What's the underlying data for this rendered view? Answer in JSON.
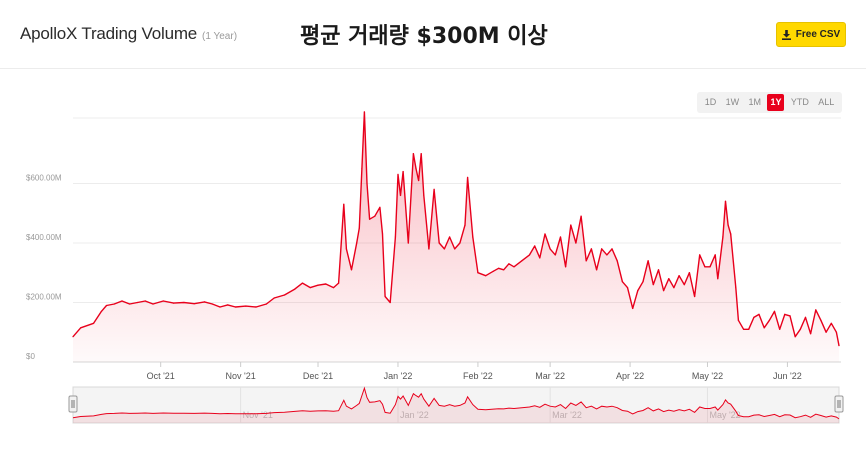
{
  "header": {
    "title": "ApolloX Trading Volume",
    "subtitle": "(1 Year)",
    "overlay_text": "평균 거래량 $300M 이상",
    "csv_button_label": "Free CSV",
    "csv_icon": "download-icon"
  },
  "range_selector": {
    "options": [
      "1D",
      "1W",
      "1M",
      "1Y",
      "YTD",
      "ALL"
    ],
    "selected": "1Y"
  },
  "colors": {
    "line": "#e8001c",
    "accent_button": "#ffd800",
    "active_range": "#e8001c"
  },
  "chart_data": {
    "type": "area",
    "title": "",
    "xlabel": "",
    "ylabel": "",
    "ylim": [
      0,
      820
    ],
    "y_unit": "M",
    "y_ticks": [
      {
        "value": 0,
        "label": "$0"
      },
      {
        "value": 200,
        "label": "$200.00M"
      },
      {
        "value": 400,
        "label": "$400.00M"
      },
      {
        "value": 600,
        "label": "$600.00M"
      }
    ],
    "x_ticks": [
      {
        "date": "2021-10-01",
        "label": "Oct '21"
      },
      {
        "date": "2021-11-01",
        "label": "Nov '21"
      },
      {
        "date": "2021-12-01",
        "label": "Dec '21"
      },
      {
        "date": "2022-01-01",
        "label": "Jan '22"
      },
      {
        "date": "2022-02-01",
        "label": "Feb '22"
      },
      {
        "date": "2022-03-01",
        "label": "Mar '22"
      },
      {
        "date": "2022-04-01",
        "label": "Apr '22"
      },
      {
        "date": "2022-05-01",
        "label": "May '22"
      },
      {
        "date": "2022-06-01",
        "label": "Jun '22"
      }
    ],
    "navigator_ticks": [
      {
        "date": "2021-11-01",
        "label": "Nov '21"
      },
      {
        "date": "2022-01-01",
        "label": "Jan '22"
      },
      {
        "date": "2022-03-01",
        "label": "Mar '22"
      },
      {
        "date": "2022-05-01",
        "label": "May '22"
      }
    ],
    "grid": true,
    "legend": "none",
    "series": [
      {
        "points": [
          [
            "2021-08-28",
            85
          ],
          [
            "2021-08-31",
            115
          ],
          [
            "2021-09-05",
            130
          ],
          [
            "2021-09-08",
            170
          ],
          [
            "2021-09-10",
            190
          ],
          [
            "2021-09-13",
            195
          ],
          [
            "2021-09-16",
            205
          ],
          [
            "2021-09-19",
            195
          ],
          [
            "2021-09-22",
            200
          ],
          [
            "2021-09-25",
            205
          ],
          [
            "2021-09-28",
            195
          ],
          [
            "2021-10-02",
            205
          ],
          [
            "2021-10-06",
            198
          ],
          [
            "2021-10-10",
            200
          ],
          [
            "2021-10-14",
            196
          ],
          [
            "2021-10-18",
            202
          ],
          [
            "2021-10-21",
            195
          ],
          [
            "2021-10-24",
            185
          ],
          [
            "2021-10-27",
            192
          ],
          [
            "2021-10-30",
            185
          ],
          [
            "2021-11-03",
            188
          ],
          [
            "2021-11-07",
            185
          ],
          [
            "2021-11-11",
            195
          ],
          [
            "2021-11-14",
            215
          ],
          [
            "2021-11-18",
            225
          ],
          [
            "2021-11-22",
            245
          ],
          [
            "2021-11-25",
            265
          ],
          [
            "2021-11-28",
            250
          ],
          [
            "2021-12-01",
            258
          ],
          [
            "2021-12-04",
            262
          ],
          [
            "2021-12-07",
            250
          ],
          [
            "2021-12-09",
            265
          ],
          [
            "2021-12-11",
            530
          ],
          [
            "2021-12-12",
            380
          ],
          [
            "2021-12-14",
            310
          ],
          [
            "2021-12-16",
            400
          ],
          [
            "2021-12-17",
            450
          ],
          [
            "2021-12-18",
            650
          ],
          [
            "2021-12-19",
            840
          ],
          [
            "2021-12-20",
            600
          ],
          [
            "2021-12-21",
            480
          ],
          [
            "2021-12-23",
            490
          ],
          [
            "2021-12-25",
            520
          ],
          [
            "2021-12-26",
            430
          ],
          [
            "2021-12-27",
            220
          ],
          [
            "2021-12-29",
            200
          ],
          [
            "2021-12-31",
            420
          ],
          [
            "2022-01-01",
            630
          ],
          [
            "2022-01-02",
            560
          ],
          [
            "2022-01-03",
            640
          ],
          [
            "2022-01-05",
            400
          ],
          [
            "2022-01-07",
            700
          ],
          [
            "2022-01-08",
            650
          ],
          [
            "2022-01-09",
            610
          ],
          [
            "2022-01-10",
            700
          ],
          [
            "2022-01-11",
            560
          ],
          [
            "2022-01-13",
            380
          ],
          [
            "2022-01-15",
            580
          ],
          [
            "2022-01-17",
            400
          ],
          [
            "2022-01-19",
            380
          ],
          [
            "2022-01-21",
            420
          ],
          [
            "2022-01-23",
            380
          ],
          [
            "2022-01-25",
            400
          ],
          [
            "2022-01-27",
            460
          ],
          [
            "2022-01-28",
            620
          ],
          [
            "2022-01-30",
            420
          ],
          [
            "2022-02-01",
            300
          ],
          [
            "2022-02-04",
            290
          ],
          [
            "2022-02-07",
            305
          ],
          [
            "2022-02-09",
            315
          ],
          [
            "2022-02-11",
            310
          ],
          [
            "2022-02-13",
            330
          ],
          [
            "2022-02-15",
            320
          ],
          [
            "2022-02-18",
            340
          ],
          [
            "2022-02-21",
            360
          ],
          [
            "2022-02-23",
            390
          ],
          [
            "2022-02-25",
            350
          ],
          [
            "2022-02-27",
            430
          ],
          [
            "2022-03-01",
            380
          ],
          [
            "2022-03-03",
            360
          ],
          [
            "2022-03-05",
            420
          ],
          [
            "2022-03-07",
            320
          ],
          [
            "2022-03-09",
            460
          ],
          [
            "2022-03-11",
            400
          ],
          [
            "2022-03-13",
            490
          ],
          [
            "2022-03-15",
            340
          ],
          [
            "2022-03-17",
            380
          ],
          [
            "2022-03-19",
            310
          ],
          [
            "2022-03-21",
            380
          ],
          [
            "2022-03-23",
            360
          ],
          [
            "2022-03-25",
            380
          ],
          [
            "2022-03-27",
            340
          ],
          [
            "2022-03-29",
            270
          ],
          [
            "2022-03-31",
            250
          ],
          [
            "2022-04-02",
            180
          ],
          [
            "2022-04-04",
            240
          ],
          [
            "2022-04-06",
            270
          ],
          [
            "2022-04-08",
            340
          ],
          [
            "2022-04-10",
            260
          ],
          [
            "2022-04-12",
            310
          ],
          [
            "2022-04-14",
            240
          ],
          [
            "2022-04-16",
            280
          ],
          [
            "2022-04-18",
            250
          ],
          [
            "2022-04-20",
            290
          ],
          [
            "2022-04-22",
            260
          ],
          [
            "2022-04-24",
            300
          ],
          [
            "2022-04-26",
            220
          ],
          [
            "2022-04-28",
            360
          ],
          [
            "2022-04-30",
            320
          ],
          [
            "2022-05-02",
            320
          ],
          [
            "2022-05-04",
            360
          ],
          [
            "2022-05-05",
            280
          ],
          [
            "2022-05-07",
            420
          ],
          [
            "2022-05-08",
            540
          ],
          [
            "2022-05-09",
            460
          ],
          [
            "2022-05-10",
            430
          ],
          [
            "2022-05-12",
            250
          ],
          [
            "2022-05-13",
            140
          ],
          [
            "2022-05-15",
            110
          ],
          [
            "2022-05-17",
            110
          ],
          [
            "2022-05-19",
            150
          ],
          [
            "2022-05-21",
            160
          ],
          [
            "2022-05-23",
            115
          ],
          [
            "2022-05-25",
            140
          ],
          [
            "2022-05-27",
            170
          ],
          [
            "2022-05-29",
            110
          ],
          [
            "2022-05-31",
            160
          ],
          [
            "2022-06-02",
            155
          ],
          [
            "2022-06-04",
            85
          ],
          [
            "2022-06-06",
            110
          ],
          [
            "2022-06-08",
            150
          ],
          [
            "2022-06-10",
            95
          ],
          [
            "2022-06-12",
            175
          ],
          [
            "2022-06-14",
            140
          ],
          [
            "2022-06-16",
            100
          ],
          [
            "2022-06-18",
            130
          ],
          [
            "2022-06-20",
            100
          ],
          [
            "2022-06-21",
            55
          ]
        ]
      }
    ]
  }
}
